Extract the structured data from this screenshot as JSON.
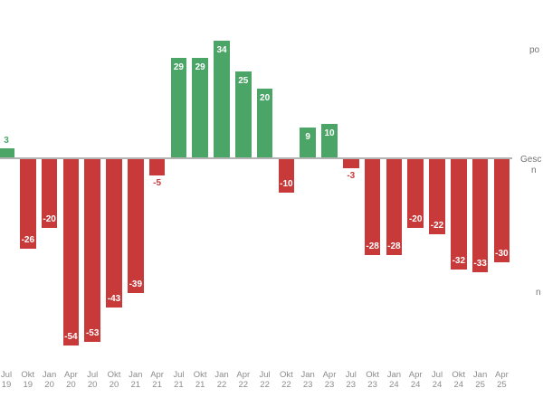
{
  "chart_data": {
    "type": "bar",
    "categories": [
      "Jul 19",
      "Okt 19",
      "Jan 20",
      "Apr 20",
      "Jul 20",
      "Okt 20",
      "Jan 21",
      "Apr 21",
      "Jul 21",
      "Okt 21",
      "Jan 22",
      "Apr 22",
      "Jul 22",
      "Okt 22",
      "Jan 23",
      "Apr 23",
      "Jul 23",
      "Okt 23",
      "Jan 24",
      "Apr 24",
      "Jul 24",
      "Okt 24",
      "Jan 25",
      "Apr 25"
    ],
    "values": [
      3,
      -26,
      -20,
      -54,
      -53,
      -43,
      -39,
      -5,
      29,
      29,
      34,
      25,
      20,
      -10,
      9,
      10,
      -3,
      -28,
      -28,
      -20,
      -22,
      -32,
      -33,
      -30
    ],
    "title": "",
    "xlabel": "",
    "ylabel": "",
    "ylim": [
      -60,
      46
    ],
    "grid": false,
    "legend": "none",
    "colors": {
      "positive": "#4ba567",
      "negative": "#c83939",
      "label_inside": "#ffffff",
      "axis_line": "#b3b3b3",
      "tick_label": "#8c8c8c",
      "fragment_text": "#737373"
    }
  },
  "annotations": {
    "top_right_fragment": "po",
    "zero_right_fragment_line1": "Gesc",
    "zero_right_fragment_line2": "n",
    "bottom_right_fragment": "n"
  }
}
